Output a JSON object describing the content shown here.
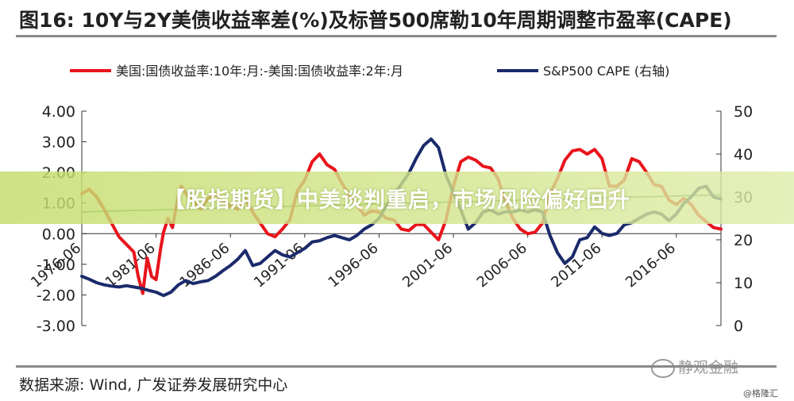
{
  "page": {
    "title": "图16: 10Y与2Y美债收益率差(%)及标普500席勒10年周期调整市盈率(CAPE)",
    "source": "数据来源: Wind, 广发证券发展研究中心",
    "watermark": "静观金融",
    "credit": "@格隆汇",
    "banner": "【股指期货】中美谈判重启，市场风险偏好回升"
  },
  "chart_data": {
    "type": "line",
    "title": "图16: 10Y与2Y美债收益率差(%)及标普500席勒10年周期调整市盈率(CAPE)",
    "x_range": [
      1976.5,
      2019.5
    ],
    "x_ticks": [
      "1976-06",
      "1981-06",
      "1986-06",
      "1991-06",
      "1996-06",
      "2001-06",
      "2006-06",
      "2011-06",
      "2016-06"
    ],
    "x_tick_values": [
      1976.5,
      1981.5,
      1986.5,
      1991.5,
      1996.5,
      2001.5,
      2006.5,
      2011.5,
      2016.5
    ],
    "y_left": {
      "range": [
        -3,
        4
      ],
      "ticks": [
        "4.00",
        "3.00",
        "2.00",
        "1.00",
        "0.00",
        "-1.00",
        "-2.00",
        "-3.00"
      ],
      "tick_values": [
        4,
        3,
        2,
        1,
        0,
        -1,
        -2,
        -3
      ]
    },
    "y_right": {
      "range": [
        0,
        50
      ],
      "ticks": [
        "50",
        "40",
        "30",
        "20",
        "10",
        "0"
      ],
      "tick_values": [
        50,
        40,
        30,
        20,
        10,
        0
      ]
    },
    "legend_position": "top",
    "grid": false,
    "series": [
      {
        "name": "美国:国债收益率:10年:月:-美国:国债收益率:2年:月",
        "axis": "left",
        "color": "#e8141c",
        "x": [
          1976.5,
          1977.0,
          1977.5,
          1978.0,
          1978.5,
          1979.0,
          1979.5,
          1980.0,
          1980.3,
          1980.6,
          1980.9,
          1981.2,
          1981.5,
          1981.8,
          1982.0,
          1982.3,
          1982.6,
          1982.9,
          1983.2,
          1983.6,
          1984.0,
          1984.5,
          1985.0,
          1985.5,
          1986.0,
          1986.5,
          1987.0,
          1987.5,
          1988.0,
          1988.5,
          1989.0,
          1989.5,
          1990.0,
          1990.5,
          1991.0,
          1991.5,
          1992.0,
          1992.5,
          1993.0,
          1993.5,
          1994.0,
          1994.5,
          1995.0,
          1995.5,
          1996.0,
          1996.5,
          1997.0,
          1997.5,
          1998.0,
          1998.5,
          1999.0,
          1999.5,
          2000.0,
          2000.5,
          2001.0,
          2001.5,
          2002.0,
          2002.5,
          2003.0,
          2003.5,
          2004.0,
          2004.5,
          2005.0,
          2005.5,
          2006.0,
          2006.5,
          2007.0,
          2007.5,
          2008.0,
          2008.5,
          2009.0,
          2009.5,
          2010.0,
          2010.5,
          2011.0,
          2011.5,
          2012.0,
          2012.5,
          2013.0,
          2013.5,
          2014.0,
          2014.5,
          2015.0,
          2015.5,
          2016.0,
          2016.5,
          2017.0,
          2017.5,
          2018.0,
          2018.5,
          2019.0,
          2019.5
        ],
        "values": [
          1.3,
          1.45,
          1.2,
          0.8,
          0.35,
          -0.1,
          -0.35,
          -0.6,
          -1.4,
          -1.95,
          -0.8,
          -1.4,
          -1.5,
          -0.5,
          0.05,
          0.5,
          0.2,
          1.0,
          1.55,
          1.25,
          1.05,
          0.8,
          1.15,
          1.3,
          1.05,
          0.9,
          0.8,
          1.15,
          0.7,
          0.35,
          0.0,
          -0.1,
          0.15,
          0.45,
          1.4,
          1.75,
          2.35,
          2.6,
          2.25,
          2.1,
          1.65,
          1.25,
          0.95,
          0.6,
          0.75,
          0.7,
          0.5,
          0.45,
          0.15,
          0.1,
          0.3,
          0.3,
          0.05,
          -0.2,
          0.45,
          1.55,
          2.35,
          2.5,
          2.4,
          2.2,
          2.15,
          1.8,
          1.05,
          0.5,
          0.15,
          0.0,
          0.05,
          0.35,
          1.3,
          1.8,
          2.4,
          2.7,
          2.75,
          2.6,
          2.75,
          2.45,
          1.55,
          1.55,
          1.75,
          2.45,
          2.35,
          2.0,
          1.6,
          1.55,
          1.1,
          0.95,
          1.15,
          0.95,
          0.6,
          0.4,
          0.2,
          0.15
        ]
      },
      {
        "name": "S&P500 CAPE (右轴)",
        "axis": "right",
        "color": "#1b2a6b",
        "x": [
          1976.5,
          1977.0,
          1977.5,
          1978.0,
          1978.5,
          1979.0,
          1979.5,
          1980.0,
          1980.5,
          1981.0,
          1981.5,
          1982.0,
          1982.5,
          1983.0,
          1983.5,
          1984.0,
          1984.5,
          1985.0,
          1985.5,
          1986.0,
          1986.5,
          1987.0,
          1987.5,
          1988.0,
          1988.5,
          1989.0,
          1989.5,
          1990.0,
          1990.5,
          1991.0,
          1991.5,
          1992.0,
          1992.5,
          1993.0,
          1993.5,
          1994.0,
          1994.5,
          1995.0,
          1995.5,
          1996.0,
          1996.5,
          1997.0,
          1997.5,
          1998.0,
          1998.5,
          1999.0,
          1999.5,
          2000.0,
          2000.5,
          2001.0,
          2001.5,
          2002.0,
          2002.5,
          2003.0,
          2003.5,
          2004.0,
          2004.5,
          2005.0,
          2005.5,
          2006.0,
          2006.5,
          2007.0,
          2007.5,
          2008.0,
          2008.5,
          2009.0,
          2009.5,
          2010.0,
          2010.5,
          2011.0,
          2011.5,
          2012.0,
          2012.5,
          2013.0,
          2013.5,
          2014.0,
          2014.5,
          2015.0,
          2015.5,
          2016.0,
          2016.5,
          2017.0,
          2017.5,
          2018.0,
          2018.5,
          2019.0,
          2019.5
        ],
        "values": [
          11.5,
          10.8,
          10.0,
          9.5,
          9.2,
          9.0,
          9.3,
          9.0,
          8.7,
          8.2,
          7.8,
          7.0,
          7.8,
          9.5,
          10.5,
          9.8,
          10.2,
          10.5,
          11.5,
          12.8,
          14.0,
          15.5,
          17.5,
          14.0,
          14.5,
          16.0,
          17.5,
          16.5,
          16.0,
          17.0,
          18.0,
          19.5,
          19.8,
          20.5,
          21.0,
          20.5,
          20.0,
          21.0,
          22.5,
          23.5,
          25.0,
          28.0,
          30.5,
          33.0,
          35.5,
          39.0,
          42.0,
          43.5,
          41.5,
          35.0,
          31.0,
          27.0,
          22.5,
          24.0,
          26.5,
          27.0,
          26.0,
          26.5,
          26.5,
          27.0,
          26.5,
          27.0,
          26.5,
          21.0,
          17.0,
          14.5,
          16.0,
          20.0,
          20.5,
          23.0,
          21.5,
          21.0,
          21.5,
          23.5,
          24.0,
          25.0,
          26.0,
          26.5,
          26.0,
          24.5,
          26.0,
          28.5,
          30.0,
          32.0,
          32.5,
          30.0,
          29.5
        ]
      }
    ],
    "trend_line": {
      "axis": "right",
      "color": "#3c8a3c",
      "x": [
        1976.5,
        2019.5
      ],
      "values": [
        26.5,
        30.5
      ]
    }
  }
}
